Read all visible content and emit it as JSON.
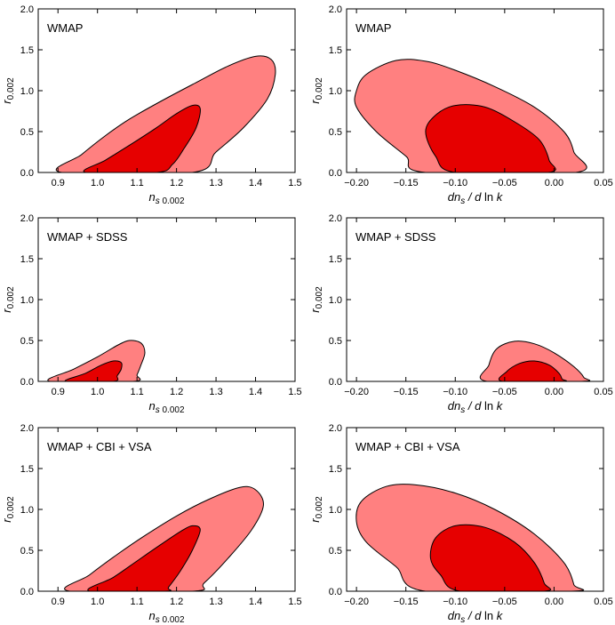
{
  "chart_data": [
    {
      "type": "contour",
      "title": "WMAP",
      "x_parameter": "ns",
      "xlim": [
        0.85,
        1.5
      ],
      "ylim": [
        0,
        2
      ],
      "x_ticks": [
        0.9,
        1.0,
        1.1,
        1.2,
        1.3,
        1.4,
        1.5
      ],
      "x_tick_labels": [
        "0.9",
        "1.0",
        "1.1",
        "1.2",
        "1.3",
        "1.4",
        "1.5"
      ],
      "y_ticks": [
        0,
        0.5,
        1.0,
        1.5,
        2.0
      ],
      "y_tick_labels": [
        "0.0",
        "0.5",
        "1.0",
        "1.5",
        "2.0"
      ],
      "regions": [
        {
          "level": "95%",
          "color": "#ff8080",
          "points": [
            [
              0.91,
              0
            ],
            [
              0.96,
              0.22
            ],
            [
              1.02,
              0.45
            ],
            [
              1.08,
              0.65
            ],
            [
              1.16,
              0.87
            ],
            [
              1.25,
              1.1
            ],
            [
              1.33,
              1.3
            ],
            [
              1.4,
              1.42
            ],
            [
              1.44,
              1.38
            ],
            [
              1.45,
              1.2
            ],
            [
              1.43,
              0.9
            ],
            [
              1.37,
              0.55
            ],
            [
              1.3,
              0.25
            ],
            [
              1.24,
              0
            ]
          ]
        },
        {
          "level": "68%",
          "color": "#e60000",
          "points": [
            [
              0.97,
              0
            ],
            [
              1.02,
              0.15
            ],
            [
              1.08,
              0.33
            ],
            [
              1.15,
              0.55
            ],
            [
              1.2,
              0.72
            ],
            [
              1.24,
              0.82
            ],
            [
              1.26,
              0.78
            ],
            [
              1.25,
              0.55
            ],
            [
              1.22,
              0.3
            ],
            [
              1.19,
              0.1
            ],
            [
              1.15,
              0
            ]
          ]
        }
      ]
    },
    {
      "type": "contour",
      "title": "WMAP",
      "x_parameter": "dns/dlnk",
      "xlim": [
        -0.21,
        0.05
      ],
      "ylim": [
        0,
        2
      ],
      "x_ticks": [
        -0.2,
        -0.15,
        -0.1,
        -0.05,
        0.0,
        0.05
      ],
      "x_tick_labels": [
        "−0.20",
        "−0.15",
        "−0.10",
        "−0.05",
        "0.00",
        "0.05"
      ],
      "y_ticks": [
        0,
        0.5,
        1.0,
        1.5,
        2.0
      ],
      "y_tick_labels": [
        "0.0",
        "0.5",
        "1.0",
        "1.5",
        "2.0"
      ],
      "regions": [
        {
          "level": "95%",
          "color": "#ff8080",
          "points": [
            [
              -0.2,
              1.0
            ],
            [
              -0.19,
              1.2
            ],
            [
              -0.16,
              1.37
            ],
            [
              -0.13,
              1.36
            ],
            [
              -0.1,
              1.25
            ],
            [
              -0.06,
              1.05
            ],
            [
              -0.02,
              0.8
            ],
            [
              0.01,
              0.5
            ],
            [
              0.02,
              0.25
            ],
            [
              0.022,
              0
            ],
            [
              -0.13,
              0
            ],
            [
              -0.15,
              0.2
            ],
            [
              -0.18,
              0.5
            ],
            [
              -0.2,
              0.8
            ]
          ]
        },
        {
          "level": "68%",
          "color": "#e60000",
          "points": [
            [
              -0.13,
              0.5
            ],
            [
              -0.12,
              0.7
            ],
            [
              -0.1,
              0.82
            ],
            [
              -0.07,
              0.8
            ],
            [
              -0.04,
              0.62
            ],
            [
              -0.015,
              0.4
            ],
            [
              -0.005,
              0.15
            ],
            [
              -0.006,
              0
            ],
            [
              -0.1,
              0
            ],
            [
              -0.12,
              0.2
            ]
          ]
        }
      ]
    },
    {
      "type": "contour",
      "title": "WMAP + SDSS",
      "x_parameter": "ns",
      "xlim": [
        0.85,
        1.5
      ],
      "ylim": [
        0,
        2
      ],
      "x_ticks": [
        0.9,
        1.0,
        1.1,
        1.2,
        1.3,
        1.4,
        1.5
      ],
      "x_tick_labels": [
        "0.9",
        "1.0",
        "1.1",
        "1.2",
        "1.3",
        "1.4",
        "1.5"
      ],
      "y_ticks": [
        0,
        0.5,
        1.0,
        1.5,
        2.0
      ],
      "y_tick_labels": [
        "0.0",
        "0.5",
        "1.0",
        "1.5",
        "2.0"
      ],
      "regions": [
        {
          "level": "95%",
          "color": "#ff8080",
          "points": [
            [
              0.88,
              0
            ],
            [
              0.94,
              0.15
            ],
            [
              1.0,
              0.3
            ],
            [
              1.05,
              0.44
            ],
            [
              1.08,
              0.5
            ],
            [
              1.11,
              0.47
            ],
            [
              1.12,
              0.35
            ],
            [
              1.11,
              0.2
            ],
            [
              1.1,
              0.08
            ],
            [
              1.09,
              0
            ]
          ]
        },
        {
          "level": "68%",
          "color": "#e60000",
          "points": [
            [
              0.92,
              0
            ],
            [
              0.97,
              0.1
            ],
            [
              1.01,
              0.2
            ],
            [
              1.04,
              0.25
            ],
            [
              1.06,
              0.23
            ],
            [
              1.06,
              0.15
            ],
            [
              1.05,
              0.07
            ],
            [
              1.04,
              0
            ]
          ]
        }
      ]
    },
    {
      "type": "contour",
      "title": "WMAP + SDSS",
      "x_parameter": "dns/dlnk",
      "xlim": [
        -0.21,
        0.05
      ],
      "ylim": [
        0,
        2
      ],
      "x_ticks": [
        -0.2,
        -0.15,
        -0.1,
        -0.05,
        0.0,
        0.05
      ],
      "x_tick_labels": [
        "−0.20",
        "−0.15",
        "−0.10",
        "−0.05",
        "0.00",
        "0.05"
      ],
      "y_ticks": [
        0,
        0.5,
        1.0,
        1.5,
        2.0
      ],
      "y_tick_labels": [
        "0.0",
        "0.5",
        "1.0",
        "1.5",
        "2.0"
      ],
      "regions": [
        {
          "level": "95%",
          "color": "#ff8080",
          "points": [
            [
              -0.068,
              0
            ],
            [
              -0.066,
              0.2
            ],
            [
              -0.058,
              0.4
            ],
            [
              -0.04,
              0.49
            ],
            [
              -0.02,
              0.46
            ],
            [
              0.0,
              0.35
            ],
            [
              0.02,
              0.18
            ],
            [
              0.03,
              0.05
            ],
            [
              0.028,
              0
            ]
          ]
        },
        {
          "level": "68%",
          "color": "#e60000",
          "points": [
            [
              -0.052,
              0
            ],
            [
              -0.048,
              0.12
            ],
            [
              -0.035,
              0.22
            ],
            [
              -0.02,
              0.25
            ],
            [
              -0.005,
              0.2
            ],
            [
              0.005,
              0.1
            ],
            [
              0.008,
              0.03
            ],
            [
              0.008,
              0
            ]
          ]
        }
      ]
    },
    {
      "type": "contour",
      "title": "WMAP + CBI + VSA",
      "x_parameter": "ns",
      "xlim": [
        0.85,
        1.5
      ],
      "ylim": [
        0,
        2
      ],
      "x_ticks": [
        0.9,
        1.0,
        1.1,
        1.2,
        1.3,
        1.4,
        1.5
      ],
      "x_tick_labels": [
        "0.9",
        "1.0",
        "1.1",
        "1.2",
        "1.3",
        "1.4",
        "1.5"
      ],
      "y_ticks": [
        0,
        0.5,
        1.0,
        1.5,
        2.0
      ],
      "y_tick_labels": [
        "0.0",
        "0.5",
        "1.0",
        "1.5",
        "2.0"
      ],
      "regions": [
        {
          "level": "95%",
          "color": "#ff8080",
          "points": [
            [
              0.93,
              0
            ],
            [
              0.98,
              0.2
            ],
            [
              1.05,
              0.45
            ],
            [
              1.12,
              0.68
            ],
            [
              1.2,
              0.92
            ],
            [
              1.28,
              1.12
            ],
            [
              1.36,
              1.27
            ],
            [
              1.4,
              1.24
            ],
            [
              1.42,
              1.05
            ],
            [
              1.39,
              0.75
            ],
            [
              1.33,
              0.4
            ],
            [
              1.27,
              0.1
            ],
            [
              1.24,
              0
            ]
          ]
        },
        {
          "level": "68%",
          "color": "#e60000",
          "points": [
            [
              0.98,
              0
            ],
            [
              1.04,
              0.17
            ],
            [
              1.1,
              0.37
            ],
            [
              1.16,
              0.57
            ],
            [
              1.21,
              0.73
            ],
            [
              1.24,
              0.8
            ],
            [
              1.26,
              0.75
            ],
            [
              1.24,
              0.5
            ],
            [
              1.21,
              0.25
            ],
            [
              1.18,
              0.05
            ],
            [
              1.17,
              0
            ]
          ]
        }
      ]
    },
    {
      "type": "contour",
      "title": "WMAP + CBI + VSA",
      "x_parameter": "dns/dlnk",
      "xlim": [
        -0.21,
        0.05
      ],
      "ylim": [
        0,
        2
      ],
      "x_ticks": [
        -0.2,
        -0.15,
        -0.1,
        -0.05,
        0.0,
        0.05
      ],
      "x_tick_labels": [
        "−0.20",
        "−0.15",
        "−0.10",
        "−0.05",
        "0.00",
        "0.05"
      ],
      "y_ticks": [
        0,
        0.5,
        1.0,
        1.5,
        2.0
      ],
      "y_tick_labels": [
        "0.0",
        "0.5",
        "1.0",
        "1.5",
        "2.0"
      ],
      "regions": [
        {
          "level": "95%",
          "color": "#ff8080",
          "points": [
            [
              -0.2,
              0.85
            ],
            [
              -0.195,
              1.1
            ],
            [
              -0.17,
              1.28
            ],
            [
              -0.14,
              1.3
            ],
            [
              -0.1,
              1.2
            ],
            [
              -0.06,
              1.0
            ],
            [
              -0.02,
              0.7
            ],
            [
              0.01,
              0.35
            ],
            [
              0.02,
              0.08
            ],
            [
              0.018,
              0
            ],
            [
              -0.13,
              0
            ],
            [
              -0.16,
              0.3
            ],
            [
              -0.19,
              0.6
            ]
          ]
        },
        {
          "level": "68%",
          "color": "#e60000",
          "points": [
            [
              -0.125,
              0.4
            ],
            [
              -0.12,
              0.65
            ],
            [
              -0.1,
              0.8
            ],
            [
              -0.07,
              0.78
            ],
            [
              -0.04,
              0.6
            ],
            [
              -0.02,
              0.35
            ],
            [
              -0.01,
              0.1
            ],
            [
              -0.01,
              0
            ],
            [
              -0.095,
              0
            ],
            [
              -0.115,
              0.2
            ]
          ]
        }
      ]
    }
  ]
}
